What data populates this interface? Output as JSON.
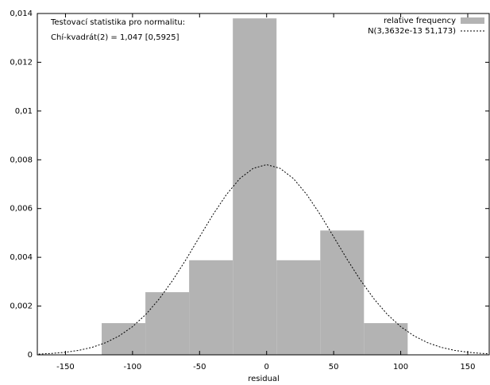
{
  "chart_data": {
    "type": "histogram",
    "annotations": [
      "Testovací statistika pro normalitu:",
      "Chí-kvadrát(2) = 1,047 [0,5925]"
    ],
    "xlabel": "residual",
    "bins": [
      -123,
      -90.4,
      -57.8,
      -25.2,
      7.4,
      40,
      72.6,
      105.2
    ],
    "values": [
      0.0013,
      0.00257,
      0.00388,
      0.0138,
      0.00388,
      0.0051,
      0.0013
    ],
    "name": "relative frequency",
    "color": "#b3b3b3",
    "curve": {
      "name": "N(3,3632e-13 51,173)",
      "color": "#000000",
      "x": [
        -170,
        -160,
        -150,
        -140,
        -130,
        -120,
        -110,
        -100,
        -90,
        -80,
        -70,
        -60,
        -50,
        -40,
        -30,
        -20,
        -10,
        0,
        10,
        20,
        30,
        40,
        50,
        60,
        70,
        80,
        90,
        100,
        110,
        120,
        130,
        140,
        150,
        160,
        165
      ],
      "values": [
        3.13e-05,
        5.87e-05,
        0.000106,
        0.000185,
        0.00031,
        0.000499,
        0.000775,
        0.001156,
        0.00166,
        0.0023,
        0.00306,
        0.00392,
        0.00484,
        0.00575,
        0.00657,
        0.00723,
        0.00765,
        0.0078,
        0.00765,
        0.00723,
        0.00657,
        0.00575,
        0.00484,
        0.00392,
        0.00306,
        0.0023,
        0.00166,
        0.001156,
        0.000775,
        0.000499,
        0.00031,
        0.000185,
        0.000106,
        5.87e-05,
        4.3e-05
      ]
    },
    "xlim": [
      -171,
      166
    ],
    "xticks": [
      -150,
      -100,
      -50,
      0,
      50,
      100,
      150
    ],
    "ylim": [
      0,
      0.014
    ],
    "yticks": [
      0,
      {
        "value": 0.002,
        "label": "0,002"
      },
      {
        "value": 0.004,
        "label": "0,004"
      },
      {
        "value": 0.006,
        "label": "0,006"
      },
      {
        "value": 0.008,
        "label": "0,008"
      },
      {
        "value": 0.01,
        "label": "0,01"
      },
      {
        "value": 0.012,
        "label": "0,012"
      },
      {
        "value": 0.014,
        "label": "0,014"
      }
    ],
    "legend": "upper right"
  }
}
